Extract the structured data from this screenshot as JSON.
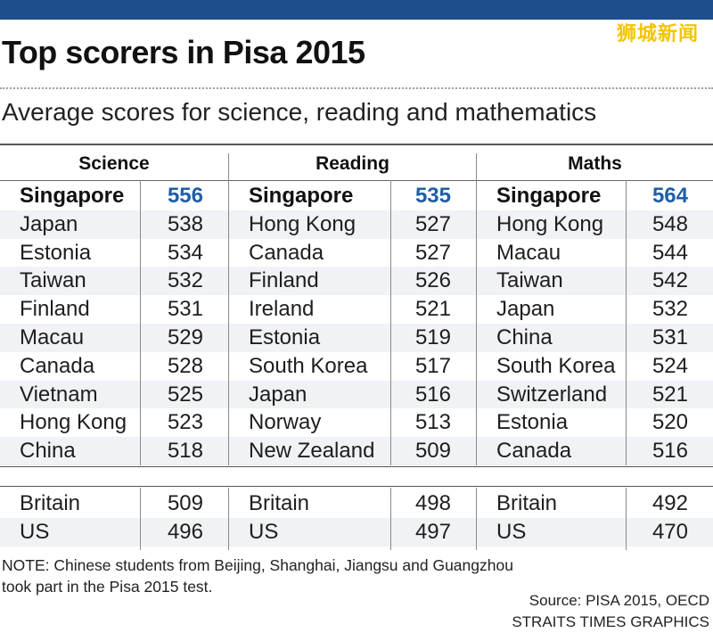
{
  "watermark": "狮城新闻",
  "title": "Top scorers in Pisa 2015",
  "subtitle": "Average scores for science, reading and mathematics",
  "note": {
    "line1": "NOTE: Chinese students from Beijing, Shanghai, Jiangsu and Guangzhou",
    "line2": "took part in the Pisa 2015 test."
  },
  "source": {
    "line1": "Source: PISA 2015, OECD",
    "line2": "STRAITS TIMES GRAPHICS"
  },
  "colors": {
    "topbar": "#1f4e8c",
    "highlight": "#1f5ea8",
    "watermark": "#f5c400"
  },
  "chart_data": {
    "type": "table",
    "title": "Top scorers in Pisa 2015",
    "subtitle": "Average scores for science, reading and mathematics",
    "columns": [
      {
        "name": "Science",
        "top": [
          {
            "country": "Singapore",
            "score": "556"
          },
          {
            "country": "Japan",
            "score": "538"
          },
          {
            "country": "Estonia",
            "score": "534"
          },
          {
            "country": "Taiwan",
            "score": "532"
          },
          {
            "country": "Finland",
            "score": "531"
          },
          {
            "country": "Macau",
            "score": "529"
          },
          {
            "country": "Canada",
            "score": "528"
          },
          {
            "country": "Vietnam",
            "score": "525"
          },
          {
            "country": "Hong Kong",
            "score": "523"
          },
          {
            "country": "China",
            "score": "518"
          }
        ],
        "others": [
          {
            "country": "Britain",
            "score": "509"
          },
          {
            "country": "US",
            "score": "496"
          }
        ]
      },
      {
        "name": "Reading",
        "top": [
          {
            "country": "Singapore",
            "score": "535"
          },
          {
            "country": "Hong Kong",
            "score": "527"
          },
          {
            "country": "Canada",
            "score": "527"
          },
          {
            "country": "Finland",
            "score": "526"
          },
          {
            "country": "Ireland",
            "score": "521"
          },
          {
            "country": "Estonia",
            "score": "519"
          },
          {
            "country": "South Korea",
            "score": "517"
          },
          {
            "country": "Japan",
            "score": "516"
          },
          {
            "country": "Norway",
            "score": "513"
          },
          {
            "country": "New Zealand",
            "score": "509"
          }
        ],
        "others": [
          {
            "country": "Britain",
            "score": "498"
          },
          {
            "country": "US",
            "score": "497"
          }
        ]
      },
      {
        "name": "Maths",
        "top": [
          {
            "country": "Singapore",
            "score": "564"
          },
          {
            "country": "Hong Kong",
            "score": "548"
          },
          {
            "country": "Macau",
            "score": "544"
          },
          {
            "country": "Taiwan",
            "score": "542"
          },
          {
            "country": "Japan",
            "score": "532"
          },
          {
            "country": "China",
            "score": "531"
          },
          {
            "country": "South Korea",
            "score": "524"
          },
          {
            "country": "Switzerland",
            "score": "521"
          },
          {
            "country": "Estonia",
            "score": "520"
          },
          {
            "country": "Canada",
            "score": "516"
          }
        ],
        "others": [
          {
            "country": "Britain",
            "score": "492"
          },
          {
            "country": "US",
            "score": "470"
          }
        ]
      }
    ]
  }
}
